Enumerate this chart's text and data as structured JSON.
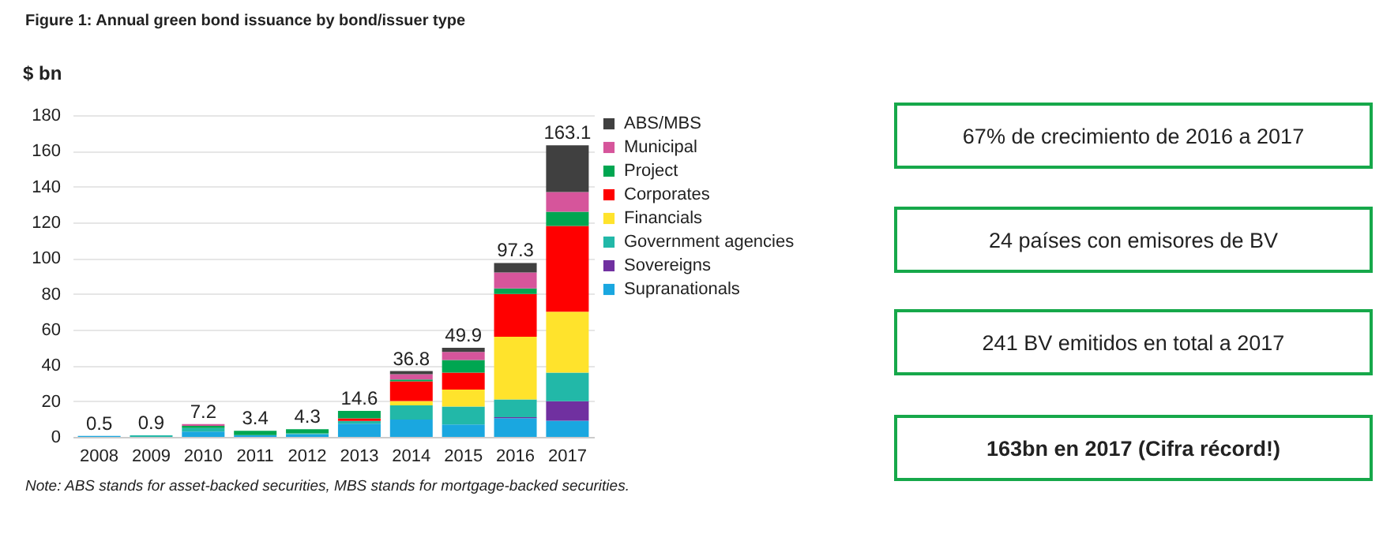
{
  "chart_data": [
    {
      "type": "bar",
      "title": "Figure 1:  Annual green bond issuance by bond/issuer type",
      "ylabel": "$ bn",
      "categories": [
        "2008",
        "2009",
        "2010",
        "2011",
        "2012",
        "2013",
        "2014",
        "2015",
        "2016",
        "2017"
      ],
      "stacked": true,
      "ylim": [
        0,
        180
      ],
      "yticks": [
        0,
        20,
        40,
        60,
        80,
        100,
        120,
        140,
        160,
        180
      ],
      "grid": "y",
      "legend": "right",
      "series": [
        {
          "name": "Supranationals",
          "color": "#1aa7e0",
          "values": [
            0.5,
            0,
            3,
            1,
            1.5,
            7.4,
            9.7,
            7,
            10.5,
            9
          ]
        },
        {
          "name": "Sovereigns",
          "color": "#7030a0",
          "values": [
            0,
            0,
            0,
            0,
            0,
            0,
            0,
            0,
            0.5,
            11
          ]
        },
        {
          "name": "Government agencies",
          "color": "#22b8a8",
          "values": [
            0,
            0.9,
            2,
            0,
            0.5,
            1.5,
            8,
            10,
            10,
            16
          ]
        },
        {
          "name": "Financials",
          "color": "#ffe32c",
          "values": [
            0,
            0,
            0,
            0,
            0,
            0,
            2.4,
            9.5,
            35,
            34
          ]
        },
        {
          "name": "Corporates",
          "color": "#ff0000",
          "values": [
            0,
            0,
            0,
            0,
            0,
            1.5,
            11,
            9.5,
            24,
            48
          ]
        },
        {
          "name": "Project",
          "color": "#00a651",
          "values": [
            0,
            0,
            1.2,
            2.4,
            2.3,
            4.2,
            1,
            7,
            3,
            8
          ]
        },
        {
          "name": "Municipal",
          "color": "#d6559b",
          "values": [
            0,
            0,
            1,
            0,
            0,
            0,
            3,
            4.5,
            9,
            11
          ]
        },
        {
          "name": "ABS/MBS",
          "color": "#404040",
          "values": [
            0,
            0,
            0,
            0,
            0,
            0,
            1.7,
            2.4,
            5.3,
            26.1
          ]
        }
      ],
      "totals": [
        "0.5",
        "0.9",
        "7.2",
        "3.4",
        "4.3",
        "14.6",
        "36.8",
        "49.9",
        "97.3",
        "163.1"
      ],
      "annotations": [
        "Note: ABS stands for asset-backed securities, MBS stands for mortgage-backed securities."
      ]
    },
    {
      "type": "other",
      "annotations": [
        "67% de crecimiento de 2016 a 2017",
        "24 países con emisores de BV",
        "241 BV emitidos en total a 2017",
        "163bn en 2017 (Cifra récord!)"
      ]
    }
  ]
}
